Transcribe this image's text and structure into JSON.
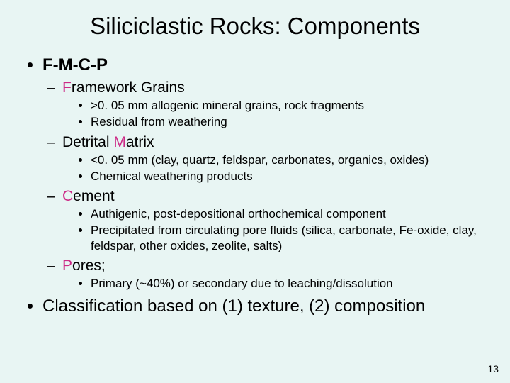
{
  "accent_color": "#cc2a86",
  "background_color": "#e8f5f3",
  "title": "Siliciclastic Rocks: Components",
  "page_number": "13",
  "bullets": {
    "one": {
      "label": "F-M-C-P",
      "items": {
        "framework": {
          "hl": "F",
          "rest": "ramework Grains",
          "subs": [
            ">0. 05 mm allogenic mineral grains, rock fragments",
            "Residual from weathering"
          ]
        },
        "matrix": {
          "pre": "Detrital ",
          "hl": "M",
          "rest": "atrix",
          "subs": [
            "<0. 05 mm (clay, quartz, feldspar, carbonates, organics, oxides)",
            "Chemical weathering products"
          ]
        },
        "cement": {
          "hl": "C",
          "rest": "ement",
          "subs": [
            "Authigenic, post-depositional orthochemical component",
            "Precipitated from circulating pore fluids (silica, carbonate, Fe-oxide, clay, feldspar, other oxides, zeolite, salts)"
          ]
        },
        "pores": {
          "hl": "P",
          "rest": "ores",
          "tail": ";",
          "subs": [
            "Primary (~40%) or secondary due to leaching/dissolution"
          ]
        }
      }
    },
    "two": "Classification based on (1) texture, (2) composition"
  }
}
